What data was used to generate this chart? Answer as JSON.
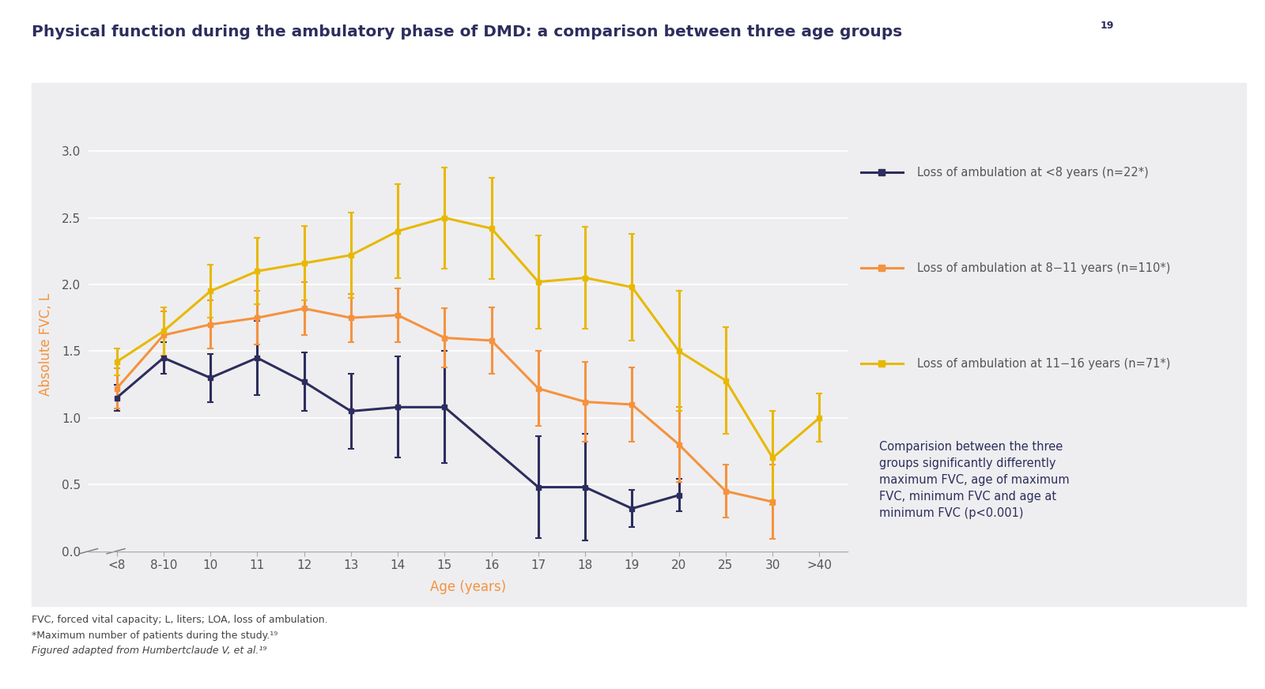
{
  "title_main": "Physical function during the ambulatory phase of DMD: a comparison between three age groups",
  "title_sup": "19",
  "ylabel": "Absolute FVC, L",
  "xlabel": "Age (years)",
  "plot_bg_color": "#eeeef0",
  "outer_bg": "#ffffff",
  "x_labels": [
    "<8",
    "8-10",
    "10",
    "11",
    "12",
    "13",
    "14",
    "15",
    "16",
    "17",
    "18",
    "19",
    "20",
    "25",
    "30",
    ">40"
  ],
  "legend_labels_display": [
    "Loss of ambulation at <8 years (n=22*)",
    "Loss of ambulation at 8−11 years (n=110*)",
    "Loss of ambulation at 11−16 years (n=71*)"
  ],
  "colors": [
    "#2d2d5e",
    "#f5923e",
    "#e8b800"
  ],
  "annotation_text": "Comparision between the three\ngroups significantly differently\nmaximum FVC, age of maximum\nFVC, minimum FVC and age at\nminimum FVC (p<0.001)",
  "footnote1": "FVC, forced vital capacity; L, liters; LOA, loss of ambulation.",
  "footnote2": "*Maximum number of patients during the study.¹⁹",
  "footnote3": "Figured adapted from Humbertclaude V, et al.¹⁹",
  "series1_y": [
    1.15,
    1.45,
    1.3,
    1.45,
    1.27,
    1.05,
    1.08,
    1.08,
    null,
    0.48,
    0.48,
    0.32,
    0.42,
    null,
    null,
    null
  ],
  "series1_yerr_lo": [
    0.1,
    0.12,
    0.18,
    0.28,
    0.22,
    0.28,
    0.38,
    0.42,
    null,
    0.38,
    0.4,
    0.14,
    0.12,
    null,
    null,
    null
  ],
  "series1_yerr_hi": [
    0.1,
    0.12,
    0.18,
    0.28,
    0.22,
    0.28,
    0.38,
    0.42,
    null,
    0.38,
    0.4,
    0.14,
    0.12,
    null,
    null,
    null
  ],
  "series2_y": [
    1.22,
    1.62,
    1.7,
    1.75,
    1.82,
    1.75,
    1.77,
    1.6,
    1.58,
    1.22,
    1.12,
    1.1,
    0.8,
    0.45,
    0.37,
    null
  ],
  "series2_yerr_lo": [
    0.15,
    0.18,
    0.18,
    0.2,
    0.2,
    0.18,
    0.2,
    0.22,
    0.25,
    0.28,
    0.3,
    0.28,
    0.28,
    0.2,
    0.28,
    null
  ],
  "series2_yerr_hi": [
    0.15,
    0.18,
    0.18,
    0.2,
    0.2,
    0.18,
    0.2,
    0.22,
    0.25,
    0.28,
    0.3,
    0.28,
    0.28,
    0.2,
    0.28,
    null
  ],
  "series3_y": [
    1.42,
    1.65,
    1.95,
    2.1,
    2.16,
    2.22,
    2.4,
    2.5,
    2.42,
    2.02,
    2.05,
    1.98,
    1.5,
    1.28,
    0.7,
    1.0
  ],
  "series3_yerr_lo": [
    0.1,
    0.18,
    0.2,
    0.25,
    0.28,
    0.32,
    0.35,
    0.38,
    0.38,
    0.35,
    0.38,
    0.4,
    0.45,
    0.4,
    0.35,
    0.18
  ],
  "series3_yerr_hi": [
    0.1,
    0.18,
    0.2,
    0.25,
    0.28,
    0.32,
    0.35,
    0.38,
    0.38,
    0.35,
    0.38,
    0.4,
    0.45,
    0.4,
    0.35,
    0.18
  ],
  "ylim": [
    0,
    3.1
  ],
  "yticks": [
    0,
    0.5,
    1.0,
    1.5,
    2.0,
    2.5,
    3.0
  ]
}
